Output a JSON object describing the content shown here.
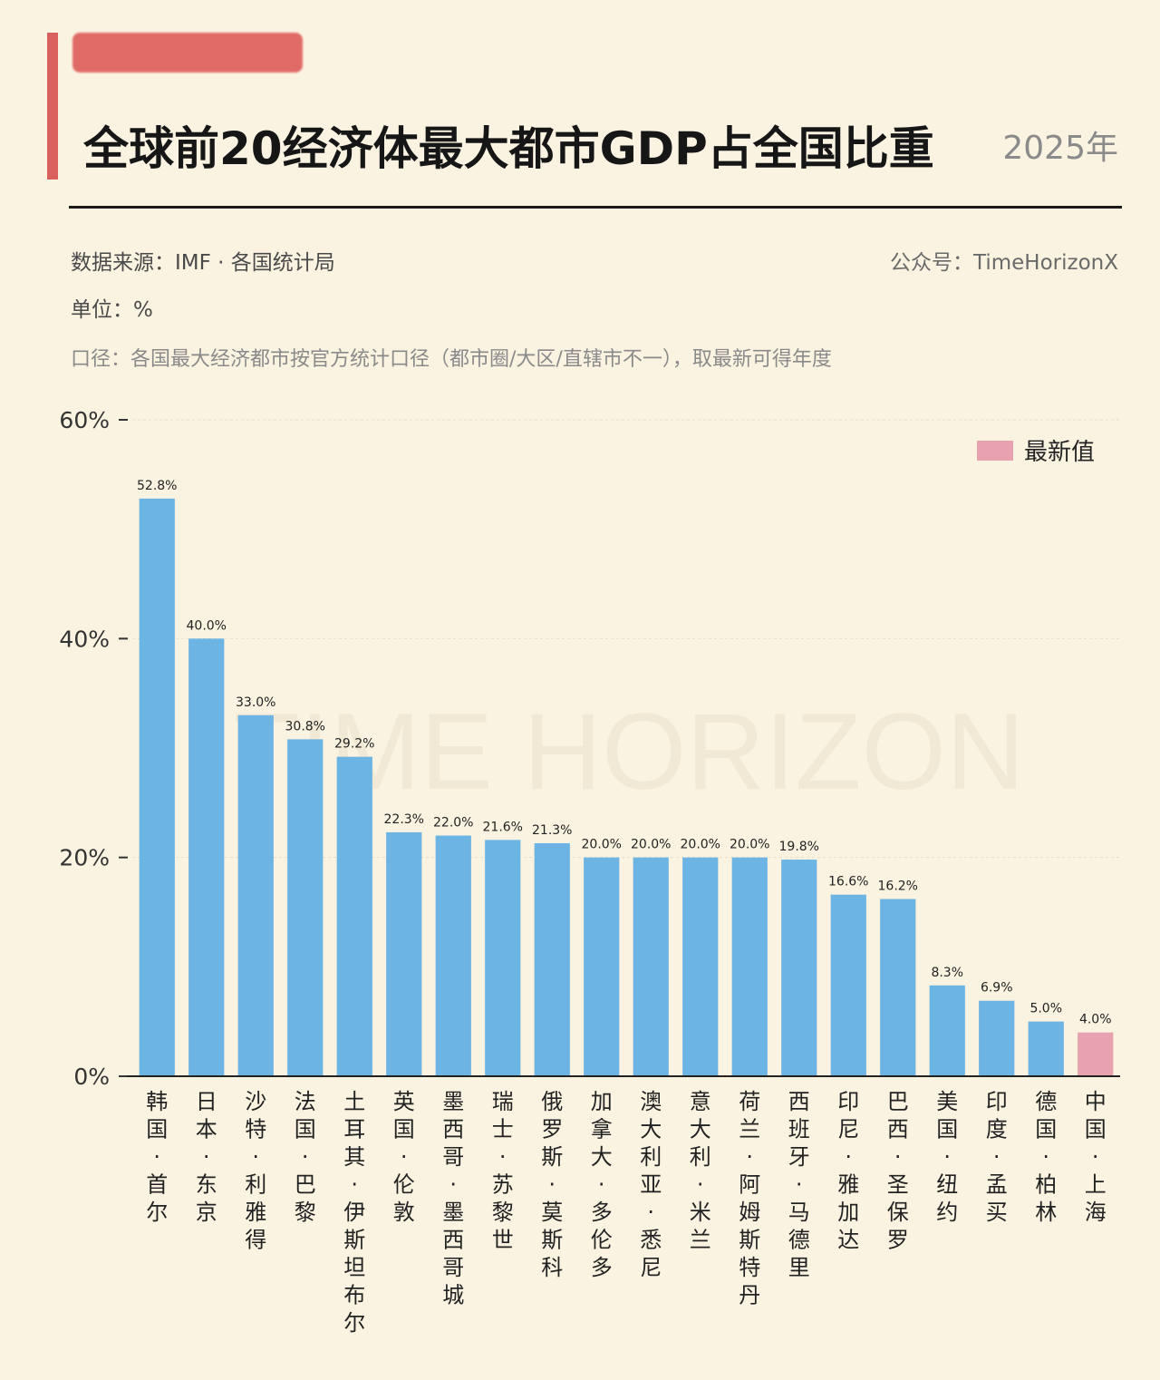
{
  "header": {
    "title": "全球前20经济体最大都市GDP占全国比重",
    "year": "2025年",
    "source": "数据来源：IMF · 各国统计局",
    "account": "公众号：TimeHorizonX",
    "unit": "单位：%",
    "scope": "口径：各国最大经济都市按官方统计口径（都市圈/大区/直辖市不一），取最新可得年度"
  },
  "colors": {
    "bar": "#6cb4e4",
    "highlight": "#e8a1ae",
    "accent": "#d9605c"
  },
  "watermark": "TIME HORIZON",
  "legend": {
    "label": "最新值"
  },
  "chart_data": {
    "type": "bar",
    "title": "全球前20经济体最大都市GDP占全国比重",
    "ylim": [
      0,
      60
    ],
    "yticks": [
      0,
      20,
      40,
      60
    ],
    "ytick_labels": [
      "0%",
      "20%",
      "40%",
      "60%"
    ],
    "grid": true,
    "legend_position": "top-right",
    "categories": [
      "韩国·首尔",
      "日本·东京",
      "沙特·利雅得",
      "法国·巴黎",
      "土耳其·伊斯坦布尔",
      "英国·伦敦",
      "墨西哥·墨西哥城",
      "瑞士·苏黎世",
      "俄罗斯·莫斯科",
      "加拿大·多伦多",
      "澳大利亚·悉尼",
      "意大利·米兰",
      "荷兰·阿姆斯特丹",
      "西班牙·马德里",
      "印尼·雅加达",
      "巴西·圣保罗",
      "美国·纽约",
      "印度·孟买",
      "德国·柏林",
      "中国·上海"
    ],
    "values": [
      52.8,
      40.0,
      33.0,
      30.8,
      29.2,
      22.3,
      22.0,
      21.6,
      21.3,
      20.0,
      20.0,
      20.0,
      20.0,
      19.8,
      16.6,
      16.2,
      8.3,
      6.9,
      5.0,
      4.0
    ],
    "value_labels": [
      "52.8%",
      "40.0%",
      "33.0%",
      "30.8%",
      "29.2%",
      "22.3%",
      "22.0%",
      "21.6%",
      "21.3%",
      "20.0%",
      "20.0%",
      "20.0%",
      "20.0%",
      "19.8%",
      "16.6%",
      "16.2%",
      "8.3%",
      "6.9%",
      "5.0%",
      "4.0%"
    ],
    "highlight_category": "中国·上海"
  }
}
